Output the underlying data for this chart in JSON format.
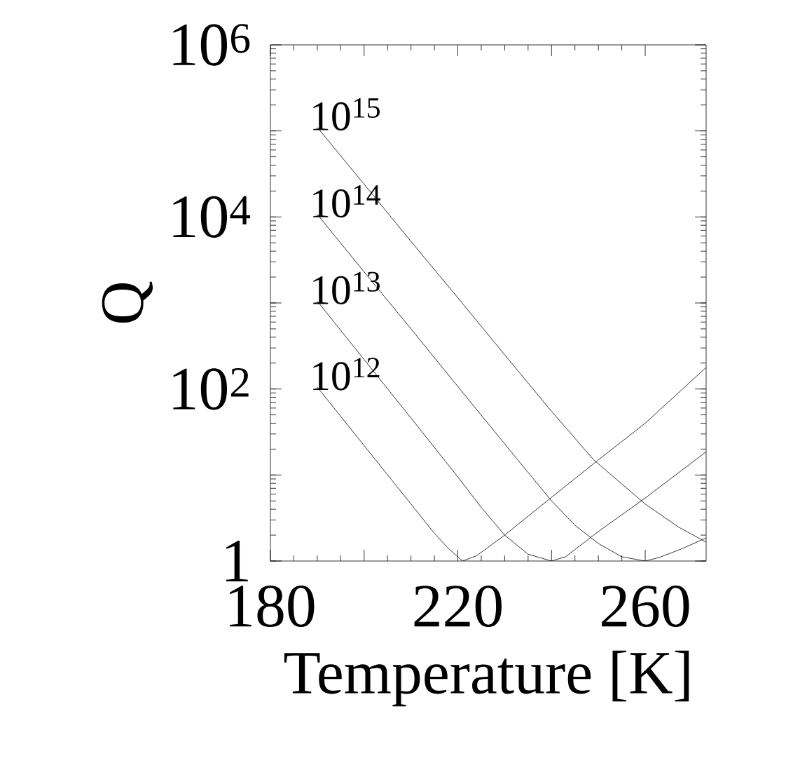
{
  "chart_data": {
    "type": "line",
    "xlabel": "Temperature [K]",
    "ylabel": "Q",
    "log": "y",
    "xlim": [
      180,
      273
    ],
    "ylim": [
      1,
      1000000
    ],
    "xticks": [
      180,
      {
        "value": 200,
        "label": null
      },
      220,
      {
        "value": 240,
        "label": null
      },
      260
    ],
    "yticks": [
      {
        "value": 1,
        "label": "1"
      },
      {
        "value": 10,
        "label": null
      },
      {
        "value": 100,
        "label": "10$^{2}$"
      },
      {
        "value": 1000,
        "label": null
      },
      {
        "value": 10000,
        "label": "10$^{4}$"
      },
      {
        "value": 100000,
        "label": null
      },
      {
        "value": 1000000,
        "label": "10$^{6}$"
      }
    ],
    "marker": "none",
    "legend": "left",
    "line_style": "solid",
    "grid": false,
    "series": [
      {
        "name": "10$^{12}$",
        "color": "#000000",
        "x": [
          190,
          200,
          210,
          215,
          218,
          221,
          224,
          230,
          240,
          250,
          260,
          273
        ],
        "values": [
          105,
          22,
          4.6,
          2.1,
          1.4,
          1,
          1.15,
          2,
          5.5,
          15,
          40,
          178
        ]
      },
      {
        "name": "10$^{13}$",
        "color": "#000000",
        "x": [
          190,
          200,
          210,
          220,
          225,
          230,
          235,
          240,
          243,
          250,
          260,
          273
        ],
        "values": [
          1050,
          220,
          46,
          9.5,
          4.2,
          2,
          1.2,
          1,
          1.12,
          2.2,
          5.4,
          18.6
        ]
      },
      {
        "name": "10$^{14}$",
        "color": "#000000",
        "x": [
          190,
          200,
          210,
          220,
          230,
          240,
          245,
          250,
          255,
          260,
          263,
          268,
          273
        ],
        "values": [
          10700,
          2300,
          500,
          107,
          23,
          5,
          2.6,
          1.6,
          1.12,
          1,
          1.1,
          1.4,
          1.86
        ]
      },
      {
        "name": "10$^{15}$",
        "color": "#000000",
        "x": [
          190,
          200,
          210,
          220,
          230,
          240,
          249,
          260,
          267,
          273
        ],
        "values": [
          110000,
          24000,
          5200,
          1150,
          250,
          55,
          15,
          4.6,
          2.5,
          1.66
        ]
      }
    ]
  }
}
